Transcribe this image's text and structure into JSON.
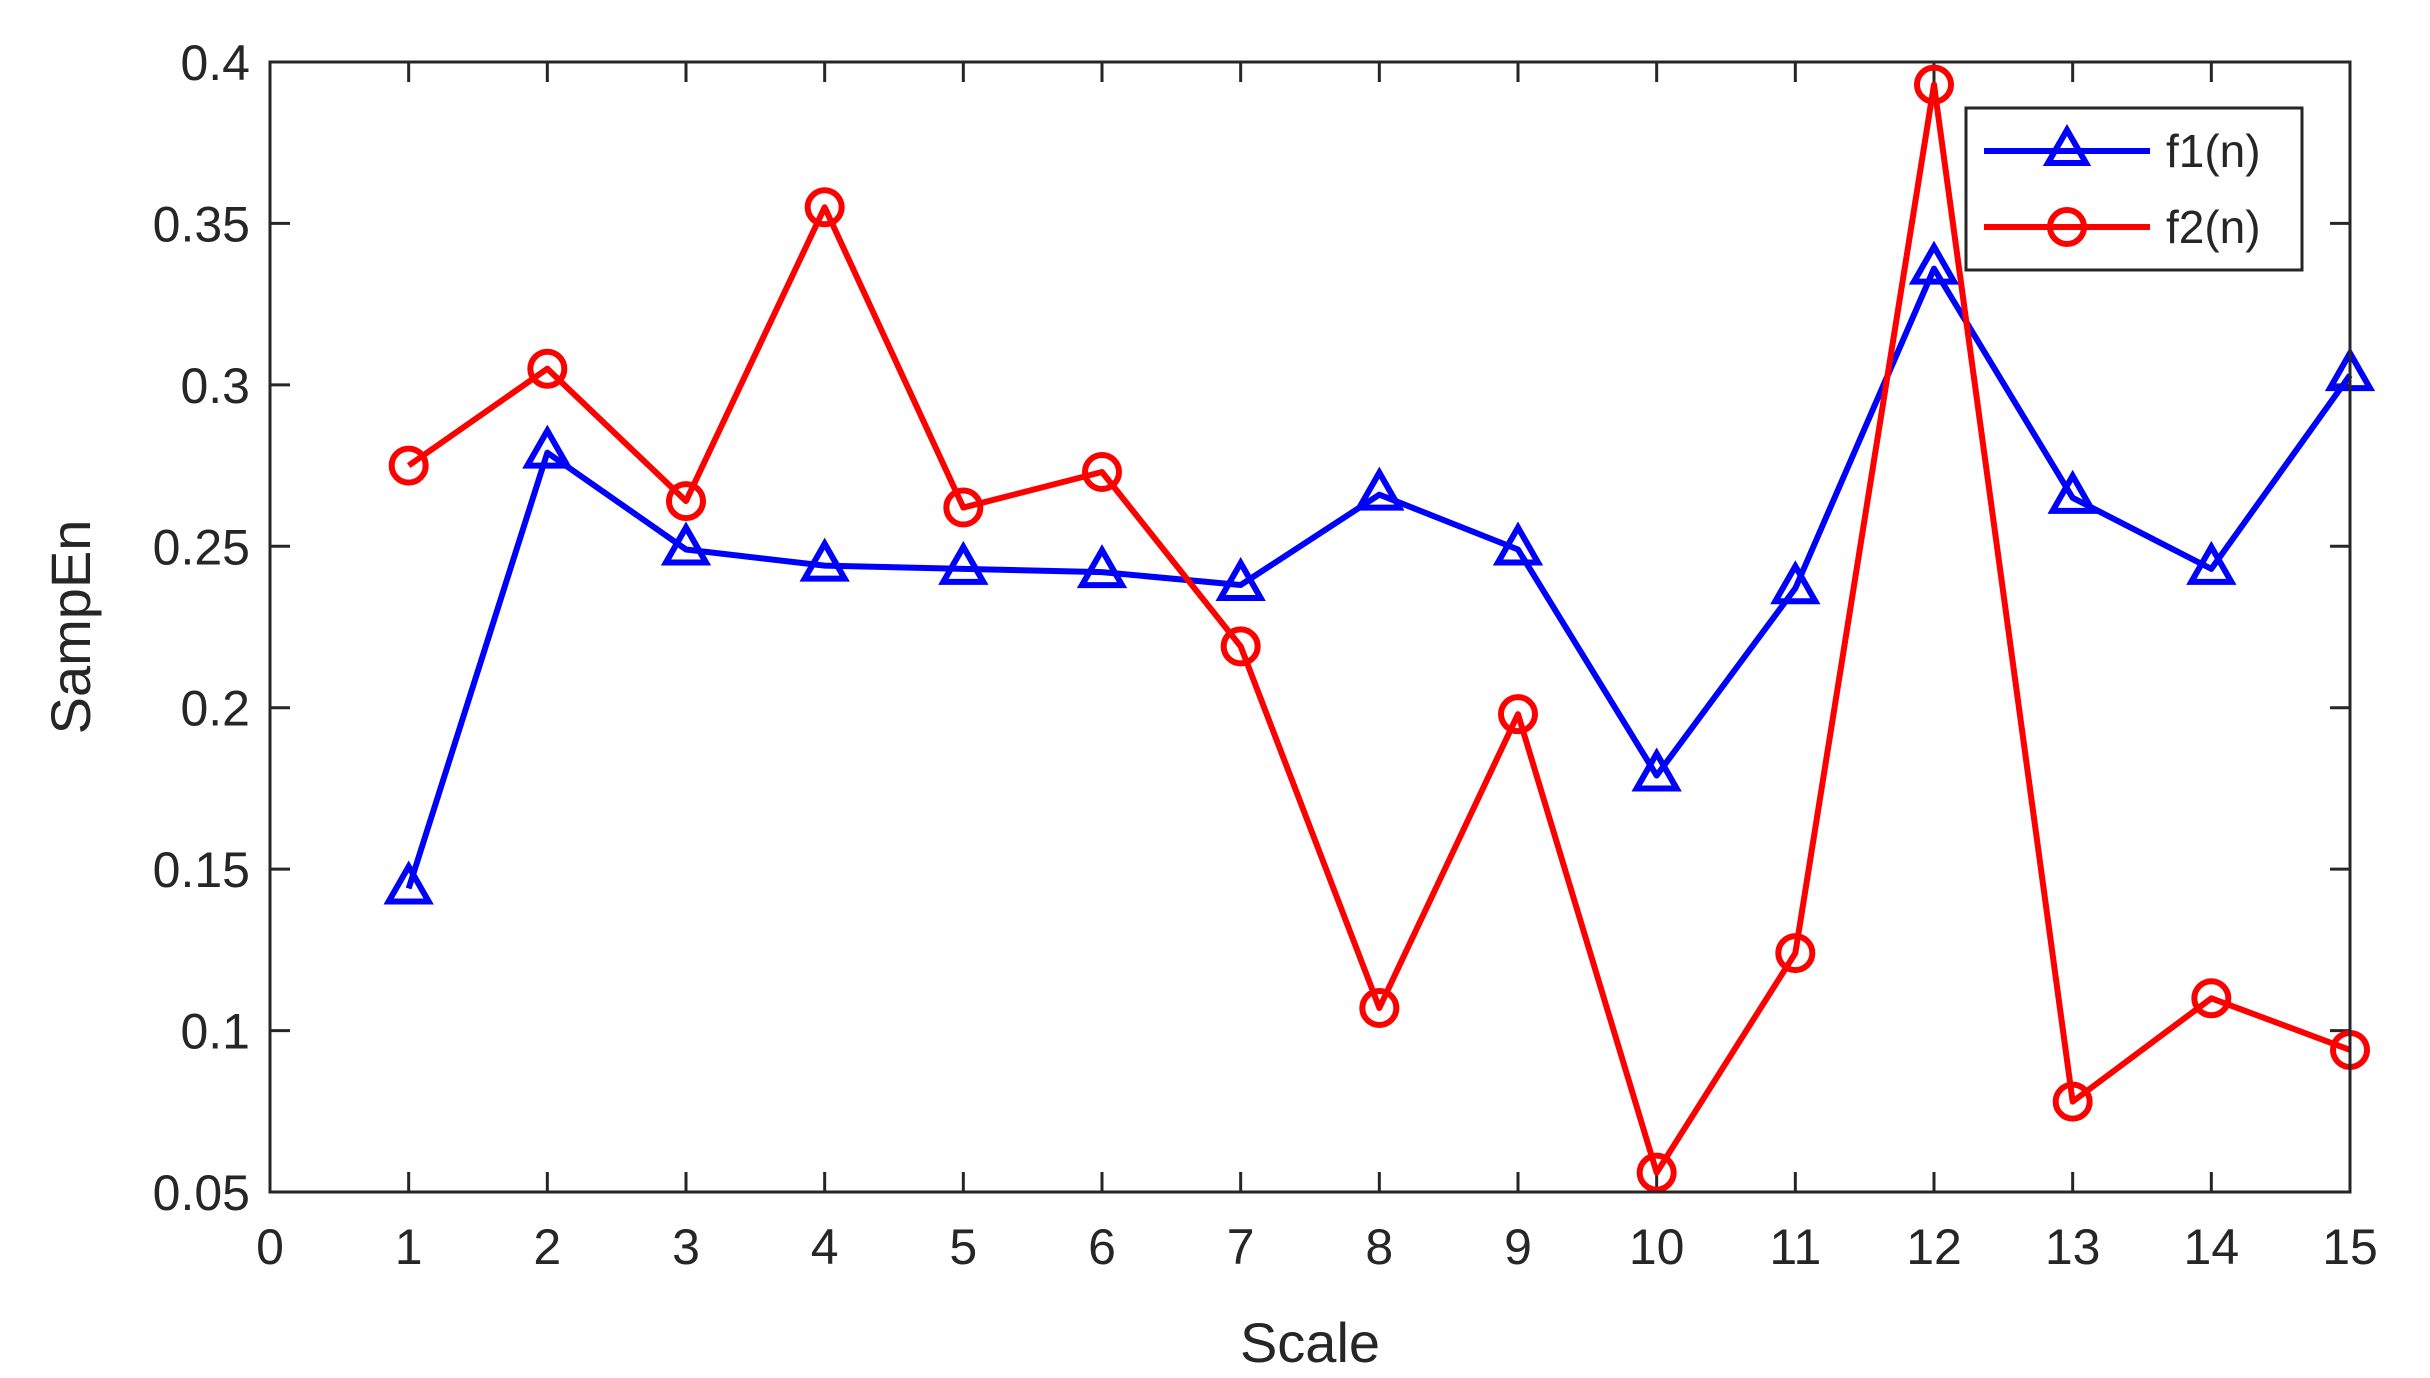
{
  "chart_data": {
    "type": "line",
    "title": "",
    "xlabel": "Scale",
    "ylabel": "SampEn",
    "xlim": [
      0,
      15
    ],
    "ylim": [
      0.05,
      0.4
    ],
    "xticks": [
      0,
      1,
      2,
      3,
      4,
      5,
      6,
      7,
      8,
      9,
      10,
      11,
      12,
      13,
      14,
      15
    ],
    "xtick_labels": [
      "0",
      "1",
      "2",
      "3",
      "4",
      "5",
      "6",
      "7",
      "8",
      "9",
      "10",
      "11",
      "12",
      "13",
      "14",
      "15"
    ],
    "yticks": [
      0.05,
      0.1,
      0.15,
      0.2,
      0.25,
      0.3,
      0.35,
      0.4
    ],
    "ytick_labels": [
      "0.05",
      "0.1",
      "0.15",
      "0.2",
      "0.25",
      "0.3",
      "0.35",
      "0.4"
    ],
    "grid": false,
    "legend_position": "top-right",
    "x": [
      1,
      2,
      3,
      4,
      5,
      6,
      7,
      8,
      9,
      10,
      11,
      12,
      13,
      14,
      15
    ],
    "series": [
      {
        "name": "f1(n)",
        "color": "#0000ff",
        "marker": "triangle",
        "values": [
          0.144,
          0.279,
          0.249,
          0.244,
          0.243,
          0.242,
          0.238,
          0.266,
          0.249,
          0.179,
          0.237,
          0.336,
          0.265,
          0.243,
          0.303
        ]
      },
      {
        "name": "f2(n)",
        "color": "#ff0000",
        "marker": "circle",
        "values": [
          0.275,
          0.305,
          0.264,
          0.355,
          0.262,
          0.273,
          0.219,
          0.107,
          0.198,
          0.056,
          0.124,
          0.393,
          0.078,
          0.11,
          0.094
        ]
      }
    ]
  }
}
